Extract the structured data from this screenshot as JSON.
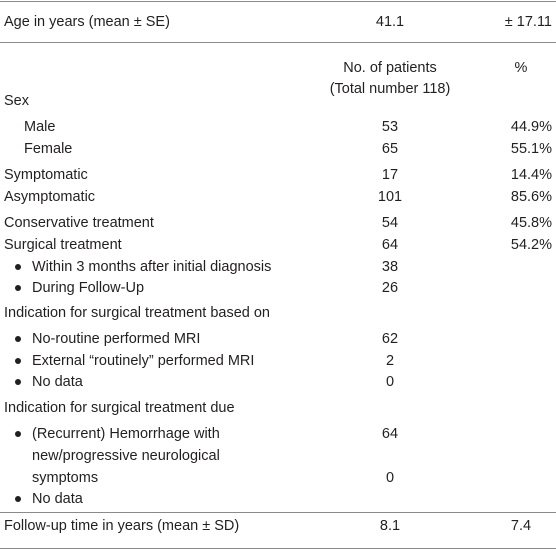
{
  "table": {
    "summary": {
      "label": "Age in years (mean ± SE)",
      "mean": "41.1",
      "se": "± 17.11"
    },
    "header": {
      "patients": [
        "No. of patients",
        "(Total number 118)"
      ],
      "percent": "%"
    },
    "rows": [
      {
        "label": "Sex"
      },
      {
        "label": "Male",
        "n": 53,
        "pct": "44.9%"
      },
      {
        "label": "Female",
        "n": 65,
        "pct": "55.1%"
      },
      {
        "label": "Symptomatic",
        "n": 17,
        "pct": "14.4%"
      },
      {
        "label": "Asymptomatic",
        "n": 101,
        "pct": "85.6%"
      },
      {
        "label": "Conservative treatment",
        "n": 54,
        "pct": "45.8%"
      },
      {
        "label": "Surgical treatment",
        "n": 64,
        "pct": "54.2%"
      },
      {
        "label": "Within 3 months after initial diagnosis",
        "n": 38
      },
      {
        "label": "During Follow-Up",
        "n": 26
      },
      {
        "label": "Indication for surgical treatment based on"
      },
      {
        "label": "No-routine performed MRI",
        "n": 62
      },
      {
        "label": "External “routinely” performed MRI",
        "n": 2
      },
      {
        "label": "No data",
        "n": 0
      },
      {
        "label": "Indication for surgical treatment due"
      },
      {
        "label": [
          "(Recurrent) Hemorrhage with",
          "new/progressive neurological",
          "symptoms"
        ],
        "n": 64
      },
      {
        "label": "No data",
        "n": 0
      }
    ],
    "footer": {
      "label": "Follow-up time in years (mean ± SD)",
      "mean": "8.1",
      "sd": "7.4"
    }
  }
}
